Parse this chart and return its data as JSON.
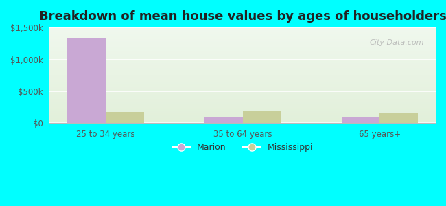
{
  "title": "Breakdown of mean house values by ages of householders",
  "categories": [
    "25 to 34 years",
    "35 to 64 years",
    "65 years+"
  ],
  "marion_values": [
    1330000,
    90000,
    90000
  ],
  "mississippi_values": [
    175000,
    185000,
    170000
  ],
  "bar_width": 0.28,
  "marion_color": "#c9a8d4",
  "mississippi_color": "#c8cf9a",
  "ylim": [
    0,
    1500000
  ],
  "yticks": [
    0,
    500000,
    1000000,
    1500000
  ],
  "ytick_labels": [
    "$0",
    "$500k",
    "$1,000k",
    "$1,500k"
  ],
  "legend_labels": [
    "Marion",
    "Mississippi"
  ],
  "background_color": "#00ffff",
  "plot_bg_grad_top": "#f8fbf4",
  "plot_bg_grad_bottom": "#e8f5e0",
  "title_fontsize": 13,
  "tick_fontsize": 8.5,
  "legend_fontsize": 9,
  "watermark": "City-Data.com"
}
